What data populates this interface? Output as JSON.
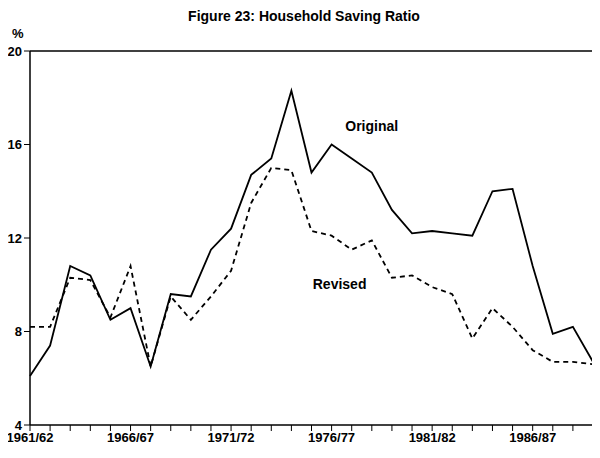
{
  "chart_data": {
    "type": "line",
    "title": "Figure 23: Household Saving Ratio",
    "y_label": "%",
    "categories": [
      "1961/62",
      null,
      null,
      null,
      null,
      "1966/67",
      null,
      null,
      null,
      null,
      "1971/72",
      null,
      null,
      null,
      null,
      "1976/77",
      null,
      null,
      null,
      null,
      "1981/82",
      null,
      null,
      null,
      null,
      "1986/87",
      null,
      null,
      null
    ],
    "series": [
      {
        "name": "Original",
        "color": "#000000",
        "line_style": "solid",
        "values": [
          6.1,
          7.4,
          10.8,
          10.4,
          8.5,
          9.0,
          6.5,
          9.6,
          9.5,
          11.5,
          12.4,
          14.7,
          15.4,
          18.3,
          14.8,
          16.0,
          15.4,
          14.8,
          13.2,
          12.2,
          12.3,
          12.2,
          12.1,
          14.0,
          14.1,
          10.8,
          7.9,
          8.2,
          6.7
        ]
      },
      {
        "name": "Revised",
        "color": "#000000",
        "line_style": "dashed",
        "values": [
          8.2,
          8.2,
          10.3,
          10.2,
          8.6,
          10.8,
          6.5,
          9.5,
          8.5,
          9.5,
          10.6,
          13.5,
          15.0,
          14.9,
          12.3,
          12.1,
          11.5,
          11.9,
          10.3,
          10.4,
          9.9,
          9.6,
          7.7,
          9.0,
          8.2,
          7.2,
          6.7,
          6.7,
          6.6
        ]
      }
    ],
    "ylim": [
      4,
      20
    ],
    "yticks": [
      4,
      8,
      12,
      16,
      20
    ],
    "grid": false
  }
}
